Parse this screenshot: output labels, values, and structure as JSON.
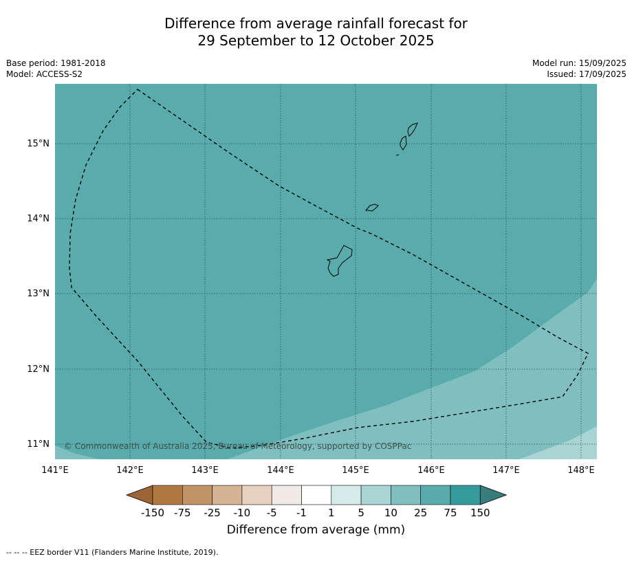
{
  "title_line1": "Difference from average rainfall forecast for",
  "title_line2": "29 September to 12 October 2025",
  "meta": {
    "base_period": "Base period: 1981-2018",
    "model": "Model: ACCESS-S2",
    "model_run": "Model run: 15/09/2025",
    "issued": "Issued: 17/09/2025"
  },
  "map": {
    "lon_range": [
      141.0,
      148.2
    ],
    "lat_range": [
      10.8,
      15.8
    ],
    "lon_ticks": [
      "141°E",
      "142°E",
      "143°E",
      "144°E",
      "145°E",
      "146°E",
      "147°E",
      "148°E"
    ],
    "lat_ticks": [
      "15°N",
      "14°N",
      "13°N",
      "12°N",
      "11°N"
    ],
    "copyright": "© Commonwealth of Australia 2025, Bureau of Meteorology, supported by COSPPac",
    "colors": {
      "class_25_75": "#5aabab",
      "class_10_25": "#80bfbf",
      "class_5_10": "#aad4d4"
    }
  },
  "colorbar": {
    "labels": [
      "-150",
      "-75",
      "-25",
      "-10",
      "-5",
      "-1",
      "1",
      "5",
      "10",
      "25",
      "75",
      "150"
    ],
    "colors": [
      "#9b6535",
      "#b07840",
      "#c39368",
      "#d6b294",
      "#e8d1be",
      "#f0ebe6",
      "#ffffff",
      "#d5ebe9",
      "#abd5d4",
      "#80bfbf",
      "#59aaaa",
      "#349a9a",
      "#367d7c"
    ],
    "title": "Difference from average (mm)"
  },
  "footnote": "--  --  -- EEZ border V11 (Flanders Marine Institute, 2019)."
}
